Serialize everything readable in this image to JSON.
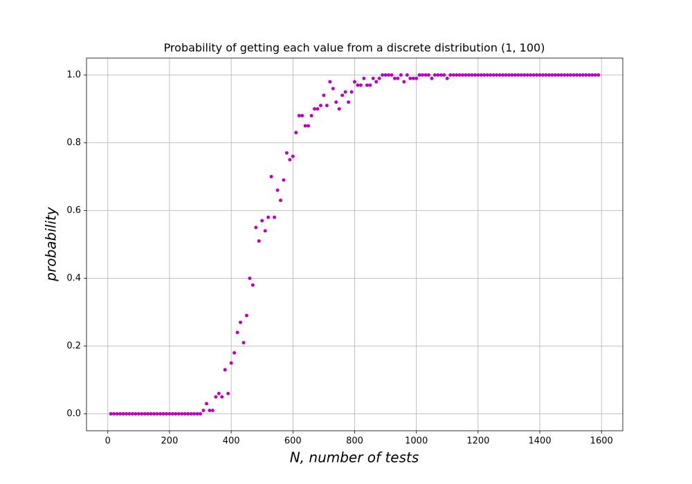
{
  "chart_data": {
    "type": "scatter",
    "title": "Probability of getting each value from a discrete distribution (1, 100)",
    "x_label": "N, number of tests",
    "y_label": "probability",
    "color": "#bf00bf",
    "grid": true,
    "xlim": [
      -69,
      1669
    ],
    "ylim": [
      -0.05,
      1.05
    ],
    "xticks": [
      0,
      200,
      400,
      600,
      800,
      1000,
      1200,
      1400,
      1600
    ],
    "yticks": [
      {
        "value": 0,
        "label": "0.0"
      },
      0.2,
      0.4,
      0.6,
      0.8,
      {
        "value": 1,
        "label": "1.0"
      }
    ],
    "x": [
      10,
      20,
      30,
      40,
      50,
      60,
      70,
      80,
      90,
      100,
      110,
      120,
      130,
      140,
      150,
      160,
      170,
      180,
      190,
      200,
      210,
      220,
      230,
      240,
      250,
      260,
      270,
      280,
      290,
      300,
      310,
      320,
      330,
      340,
      350,
      360,
      370,
      380,
      390,
      400,
      410,
      420,
      430,
      440,
      450,
      460,
      470,
      480,
      490,
      500,
      510,
      520,
      530,
      540,
      550,
      560,
      570,
      580,
      590,
      600,
      610,
      620,
      630,
      640,
      650,
      660,
      670,
      680,
      690,
      700,
      710,
      720,
      730,
      740,
      750,
      760,
      770,
      780,
      790,
      800,
      810,
      820,
      830,
      840,
      850,
      860,
      870,
      880,
      890,
      900,
      910,
      920,
      930,
      940,
      950,
      960,
      970,
      980,
      990,
      1000,
      1010,
      1020,
      1030,
      1040,
      1050,
      1060,
      1070,
      1080,
      1090,
      1100,
      1110,
      1120,
      1130,
      1140,
      1150,
      1160,
      1170,
      1180,
      1190,
      1200,
      1210,
      1220,
      1230,
      1240,
      1250,
      1260,
      1270,
      1280,
      1290,
      1300,
      1310,
      1320,
      1330,
      1340,
      1350,
      1360,
      1370,
      1380,
      1390,
      1400,
      1410,
      1420,
      1430,
      1440,
      1450,
      1460,
      1470,
      1480,
      1490,
      1500,
      1510,
      1520,
      1530,
      1540,
      1550,
      1560,
      1570,
      1580,
      1590
    ],
    "values": [
      0,
      0,
      0,
      0,
      0,
      0,
      0,
      0,
      0,
      0,
      0,
      0,
      0,
      0,
      0,
      0,
      0,
      0,
      0,
      0,
      0,
      0,
      0,
      0,
      0,
      0,
      0,
      0,
      0,
      0,
      0.01,
      0.03,
      0.01,
      0.01,
      0.05,
      0.06,
      0.05,
      0.13,
      0.06,
      0.15,
      0.18,
      0.24,
      0.27,
      0.21,
      0.29,
      0.4,
      0.38,
      0.55,
      0.51,
      0.57,
      0.54,
      0.58,
      0.7,
      0.58,
      0.66,
      0.63,
      0.69,
      0.77,
      0.75,
      0.76,
      0.83,
      0.88,
      0.88,
      0.85,
      0.85,
      0.88,
      0.9,
      0.9,
      0.91,
      0.94,
      0.91,
      0.98,
      0.96,
      0.92,
      0.9,
      0.94,
      0.95,
      0.92,
      0.95,
      0.98,
      0.97,
      0.97,
      0.99,
      0.97,
      0.97,
      0.99,
      0.98,
      0.99,
      1,
      1,
      1,
      1,
      0.99,
      0.99,
      1,
      0.98,
      1,
      0.99,
      0.99,
      0.99,
      1,
      1,
      1,
      1,
      0.99,
      1,
      1,
      1,
      1,
      0.99,
      1,
      1,
      1,
      1,
      1,
      1,
      1,
      1,
      1,
      1,
      1,
      1,
      1,
      1,
      1,
      1,
      1,
      1,
      1,
      1,
      1,
      1,
      1,
      1,
      1,
      1,
      1,
      1,
      1,
      1,
      1,
      1,
      1,
      1,
      1,
      1,
      1,
      1,
      1,
      1,
      1,
      1,
      1,
      1,
      1,
      1,
      1,
      1,
      1
    ]
  }
}
